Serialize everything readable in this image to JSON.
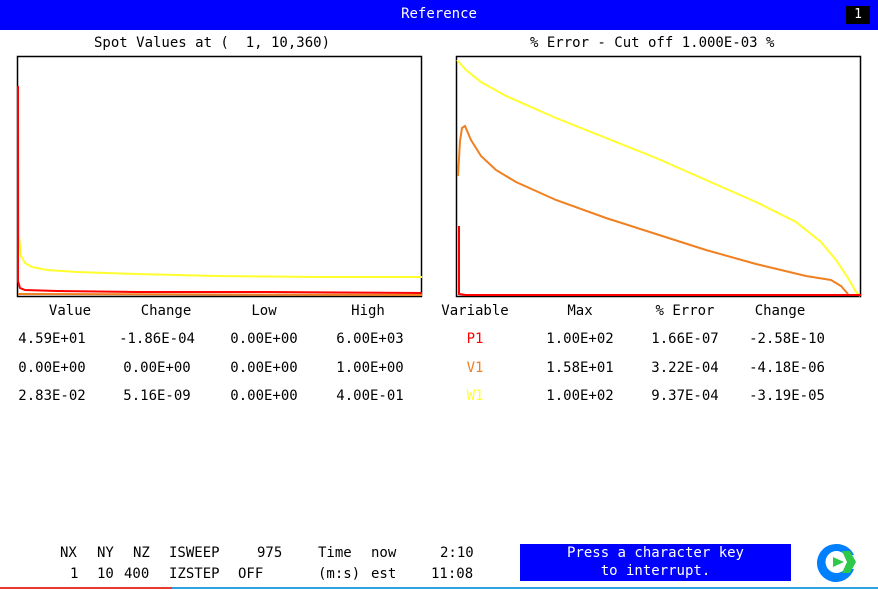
{
  "window": {
    "title": "Reference",
    "number": "1"
  },
  "left_plot": {
    "title": "Spot Values at (  1, 10,360)"
  },
  "right_plot": {
    "title": "% Error - Cut off 1.000E-03 %"
  },
  "table": {
    "headers": {
      "value": "Value",
      "change": "Change",
      "low": "Low",
      "high": "High",
      "variable": "Variable",
      "max": "Max",
      "error": "% Error",
      "change2": "Change"
    },
    "rows": [
      {
        "value": "4.59E+01",
        "change": "-1.86E-04",
        "low": "0.00E+00",
        "high": "6.00E+03",
        "variable": "P1",
        "max": "1.00E+02",
        "error": "1.66E-07",
        "change2": "-2.58E-10",
        "color": "#ff0000"
      },
      {
        "value": "0.00E+00",
        "change": "0.00E+00",
        "low": "0.00E+00",
        "high": "1.00E+00",
        "variable": "V1",
        "max": "1.58E+01",
        "error": "3.22E-04",
        "change2": "-4.18E-06",
        "color": "#f08020"
      },
      {
        "value": "2.83E-02",
        "change": "5.16E-09",
        "low": "0.00E+00",
        "high": "4.00E-01",
        "variable": "W1",
        "max": "1.00E+02",
        "error": "9.37E-04",
        "change2": "-3.19E-05",
        "color": "#ffff30"
      }
    ]
  },
  "status": {
    "line1": {
      "a": "NX",
      "b": "NY",
      "c": "NZ",
      "d": "ISWEEP",
      "e": "975",
      "f": "Time",
      "g": "now",
      "h": "2:10"
    },
    "line2": {
      "a": "1",
      "b": "10",
      "c": "400",
      "d": "IZSTEP",
      "e": "OFF",
      "f": "(m:s)",
      "g": "est",
      "h": "11:08"
    }
  },
  "message": {
    "line1": "Press a character key",
    "line2": "to interrupt."
  },
  "colors": {
    "titlebar": "#0000ff",
    "p1": "#ff0000",
    "v1": "#f08020",
    "w1": "#ffff30"
  },
  "icons": {
    "logo": "phoenics-logo-icon"
  }
}
